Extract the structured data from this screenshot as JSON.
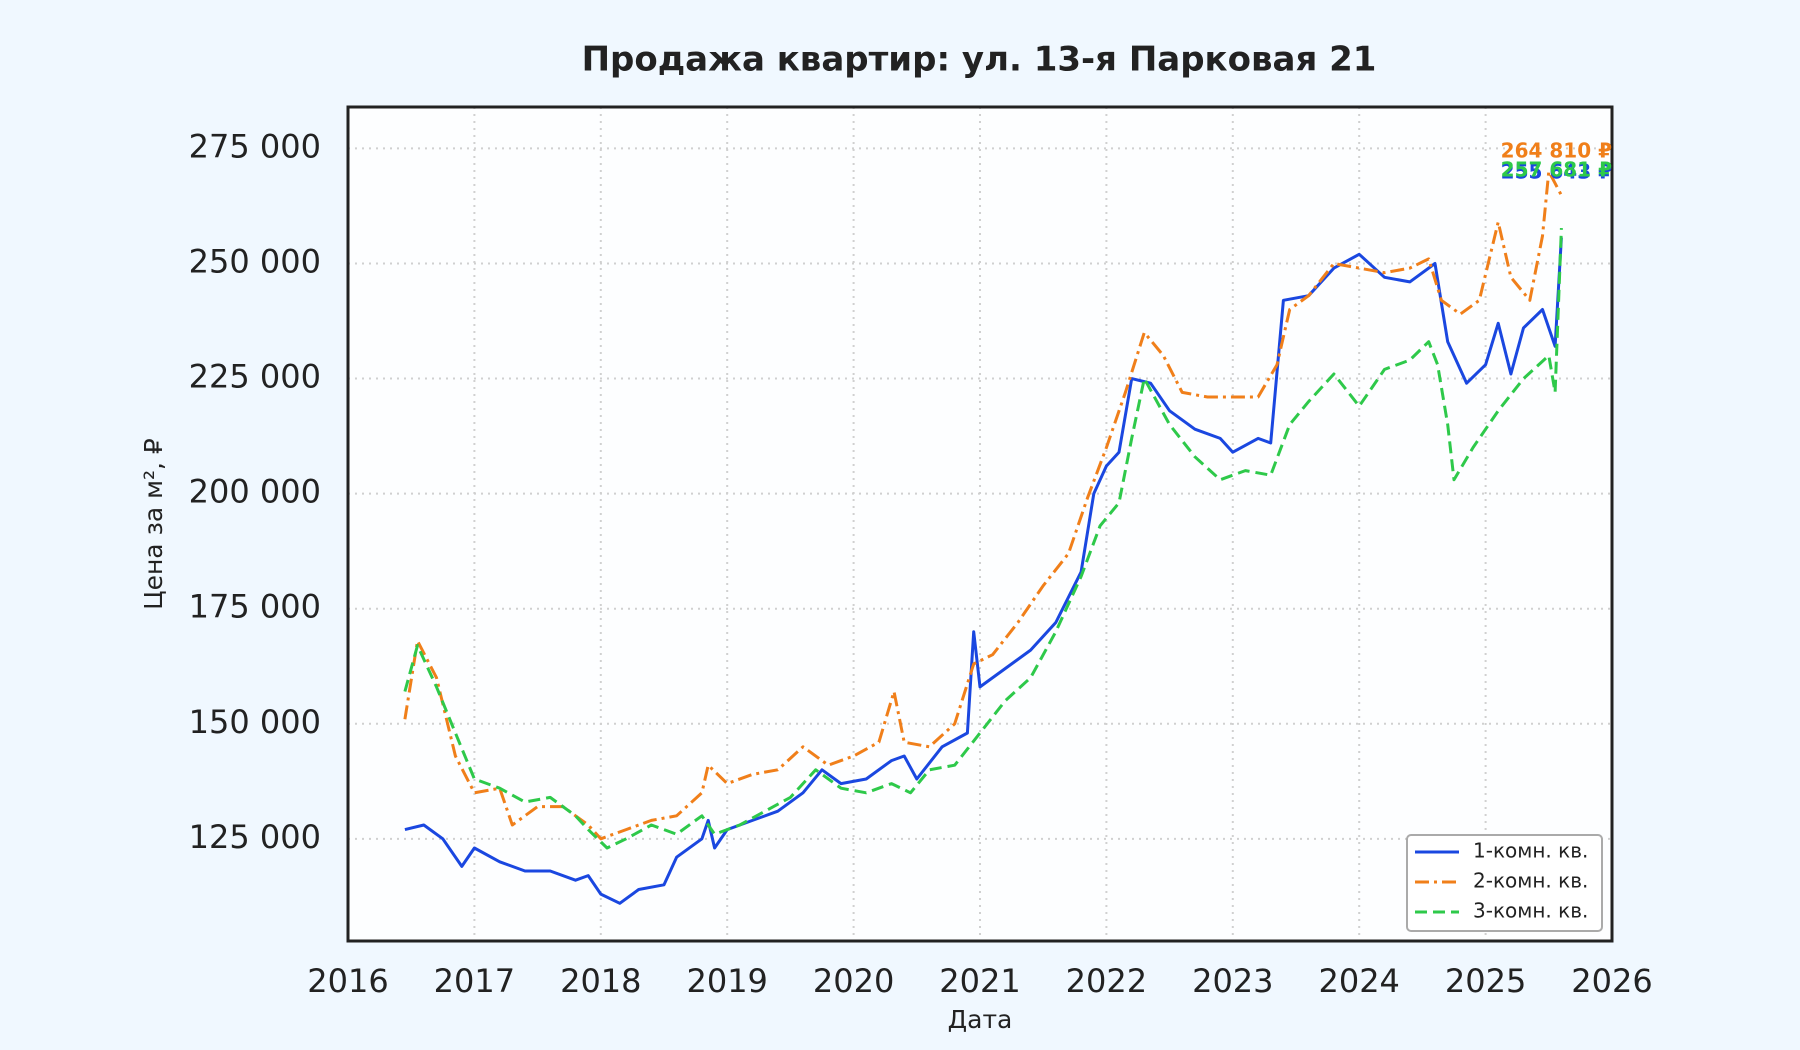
{
  "chart_data": {
    "type": "line",
    "title": "Продажа квартир: ул. 13-я Парковая 21",
    "xlabel": "Дата",
    "ylabel": "Цена за м², ₽",
    "xlim": [
      2016,
      2026
    ],
    "xticks": [
      2016,
      2017,
      2018,
      2019,
      2020,
      2021,
      2022,
      2023,
      2024,
      2025,
      2026
    ],
    "ylim": [
      102800,
      284000
    ],
    "yticks": [
      {
        "value": 125000,
        "label": "125 000"
      },
      {
        "value": 150000,
        "label": "150 000"
      },
      {
        "value": 175000,
        "label": "175 000"
      },
      {
        "value": 200000,
        "label": "200 000"
      },
      {
        "value": 225000,
        "label": "225 000"
      },
      {
        "value": 250000,
        "label": "250 000"
      },
      {
        "value": 275000,
        "label": "275 000"
      }
    ],
    "grid": true,
    "legend": "lower right",
    "series": [
      {
        "name": "1-комн. кв.",
        "color": "#1a47e0",
        "dash": "solid",
        "end_label": "255 643 ₽",
        "x": [
          2016.45,
          2016.6,
          2016.75,
          2016.9,
          2017.0,
          2017.2,
          2017.4,
          2017.6,
          2017.8,
          2017.9,
          2018.0,
          2018.15,
          2018.3,
          2018.5,
          2018.6,
          2018.8,
          2018.85,
          2018.9,
          2019.0,
          2019.2,
          2019.4,
          2019.6,
          2019.75,
          2019.9,
          2020.1,
          2020.3,
          2020.4,
          2020.5,
          2020.7,
          2020.9,
          2020.95,
          2021.0,
          2021.2,
          2021.4,
          2021.6,
          2021.8,
          2021.9,
          2022.0,
          2022.1,
          2022.2,
          2022.35,
          2022.5,
          2022.7,
          2022.9,
          2023.0,
          2023.2,
          2023.3,
          2023.4,
          2023.6,
          2023.8,
          2024.0,
          2024.2,
          2024.4,
          2024.6,
          2024.7,
          2024.85,
          2025.0,
          2025.1,
          2025.2,
          2025.3,
          2025.45,
          2025.55,
          2025.6
        ],
        "values": [
          127000,
          128000,
          125000,
          119000,
          123000,
          120000,
          118000,
          118000,
          116000,
          117000,
          113000,
          111000,
          114000,
          115000,
          121000,
          125000,
          129000,
          123000,
          127000,
          129000,
          131000,
          135000,
          140000,
          137000,
          138000,
          142000,
          143000,
          138000,
          145000,
          148000,
          170000,
          158000,
          162000,
          166000,
          172000,
          183000,
          200000,
          206000,
          209000,
          225000,
          224000,
          218000,
          214000,
          212000,
          209000,
          212000,
          211000,
          242000,
          243000,
          249000,
          252000,
          247000,
          246000,
          250000,
          233000,
          224000,
          228000,
          237000,
          226000,
          236000,
          240000,
          232000,
          255643
        ]
      },
      {
        "name": "2-комн. кв.",
        "color": "#f07f1a",
        "dash": "dashdot",
        "end_label": "264 810 ₽",
        "x": [
          2016.45,
          2016.55,
          2016.7,
          2016.85,
          2017.0,
          2017.2,
          2017.3,
          2017.5,
          2017.7,
          2017.9,
          2018.0,
          2018.2,
          2018.4,
          2018.6,
          2018.8,
          2018.85,
          2019.0,
          2019.2,
          2019.4,
          2019.6,
          2019.8,
          2020.0,
          2020.2,
          2020.32,
          2020.4,
          2020.6,
          2020.8,
          2020.95,
          2021.1,
          2021.3,
          2021.5,
          2021.7,
          2021.85,
          2022.0,
          2022.15,
          2022.3,
          2022.45,
          2022.6,
          2022.8,
          2023.0,
          2023.2,
          2023.35,
          2023.45,
          2023.6,
          2023.8,
          2024.0,
          2024.2,
          2024.4,
          2024.55,
          2024.65,
          2024.8,
          2024.95,
          2025.1,
          2025.2,
          2025.35,
          2025.45,
          2025.5,
          2025.6
        ],
        "values": [
          151000,
          168000,
          160000,
          143000,
          135000,
          136000,
          128000,
          132000,
          132000,
          128000,
          125000,
          127000,
          129000,
          130000,
          135000,
          141000,
          137000,
          139000,
          140000,
          145000,
          141000,
          143000,
          146000,
          157000,
          146000,
          145000,
          150000,
          163000,
          165000,
          172000,
          180000,
          187000,
          199000,
          210000,
          222000,
          235000,
          230000,
          222000,
          221000,
          221000,
          221000,
          228000,
          240000,
          243000,
          250000,
          249000,
          248000,
          249000,
          251000,
          242000,
          239000,
          242000,
          259000,
          247000,
          242000,
          256000,
          270000,
          264810
        ]
      },
      {
        "name": "3-комн. кв.",
        "color": "#2ec94a",
        "dash": "dashed",
        "end_label": "257 681 ₽",
        "x": [
          2016.45,
          2016.55,
          2016.7,
          2016.85,
          2017.0,
          2017.2,
          2017.4,
          2017.6,
          2017.8,
          2017.9,
          2018.05,
          2018.2,
          2018.4,
          2018.6,
          2018.8,
          2018.9,
          2019.1,
          2019.3,
          2019.5,
          2019.7,
          2019.9,
          2020.1,
          2020.3,
          2020.45,
          2020.6,
          2020.8,
          2021.0,
          2021.2,
          2021.4,
          2021.6,
          2021.8,
          2021.95,
          2022.1,
          2022.2,
          2022.3,
          2022.5,
          2022.7,
          2022.9,
          2023.1,
          2023.3,
          2023.45,
          2023.6,
          2023.8,
          2024.0,
          2024.2,
          2024.4,
          2024.55,
          2024.62,
          2024.7,
          2024.75,
          2024.9,
          2025.1,
          2025.3,
          2025.5,
          2025.55,
          2025.6
        ],
        "values": [
          157000,
          167000,
          158000,
          148000,
          138000,
          136000,
          133000,
          134000,
          130000,
          127000,
          123000,
          125000,
          128000,
          126000,
          130000,
          126000,
          128000,
          131000,
          134000,
          140000,
          136000,
          135000,
          137000,
          135000,
          140000,
          141000,
          148000,
          155000,
          160000,
          170000,
          182000,
          193000,
          198000,
          212000,
          225000,
          215000,
          208000,
          203000,
          205000,
          204000,
          215000,
          220000,
          226000,
          219000,
          227000,
          229000,
          233000,
          228000,
          215000,
          203000,
          210000,
          218000,
          225000,
          230000,
          222000,
          257681
        ]
      }
    ]
  }
}
